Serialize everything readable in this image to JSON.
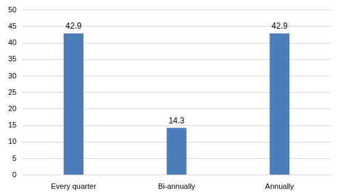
{
  "chart_data": {
    "type": "bar",
    "categories": [
      "Every quarter",
      "Bi-annually",
      "Annually"
    ],
    "values": [
      42.9,
      14.3,
      42.9
    ],
    "color": "#4a7ebb",
    "ylim": [
      0,
      50
    ],
    "yticks": [
      0,
      5,
      10,
      15,
      20,
      25,
      30,
      35,
      40,
      45,
      50
    ],
    "grid": true,
    "data_labels": true
  }
}
